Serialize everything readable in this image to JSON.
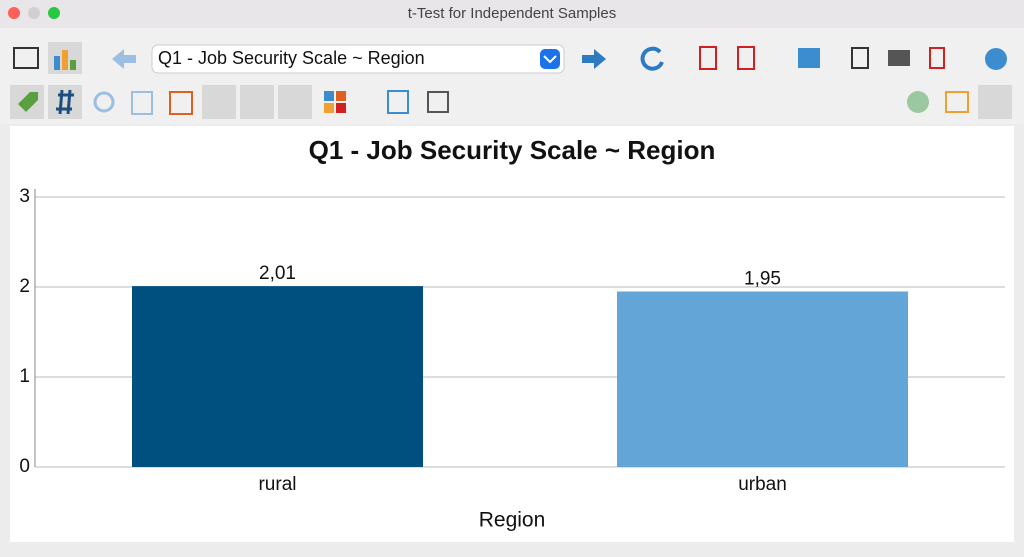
{
  "window": {
    "title": "t-Test for Independent Samples"
  },
  "toolbar": {
    "dropdown": "Q1 - Job Security Scale ~ Region"
  },
  "chart_data": {
    "type": "bar",
    "title": "Q1 - Job Security Scale ~ Region",
    "categories": [
      "rural",
      "urban"
    ],
    "values": [
      2.01,
      1.95
    ],
    "value_labels": [
      "2,01",
      "1,95"
    ],
    "colors": [
      "#00507f",
      "#64a5d7"
    ],
    "x_label": "Region",
    "ylim": [
      0,
      3
    ],
    "yticks": [
      0,
      1,
      2,
      3
    ],
    "grid": true
  }
}
